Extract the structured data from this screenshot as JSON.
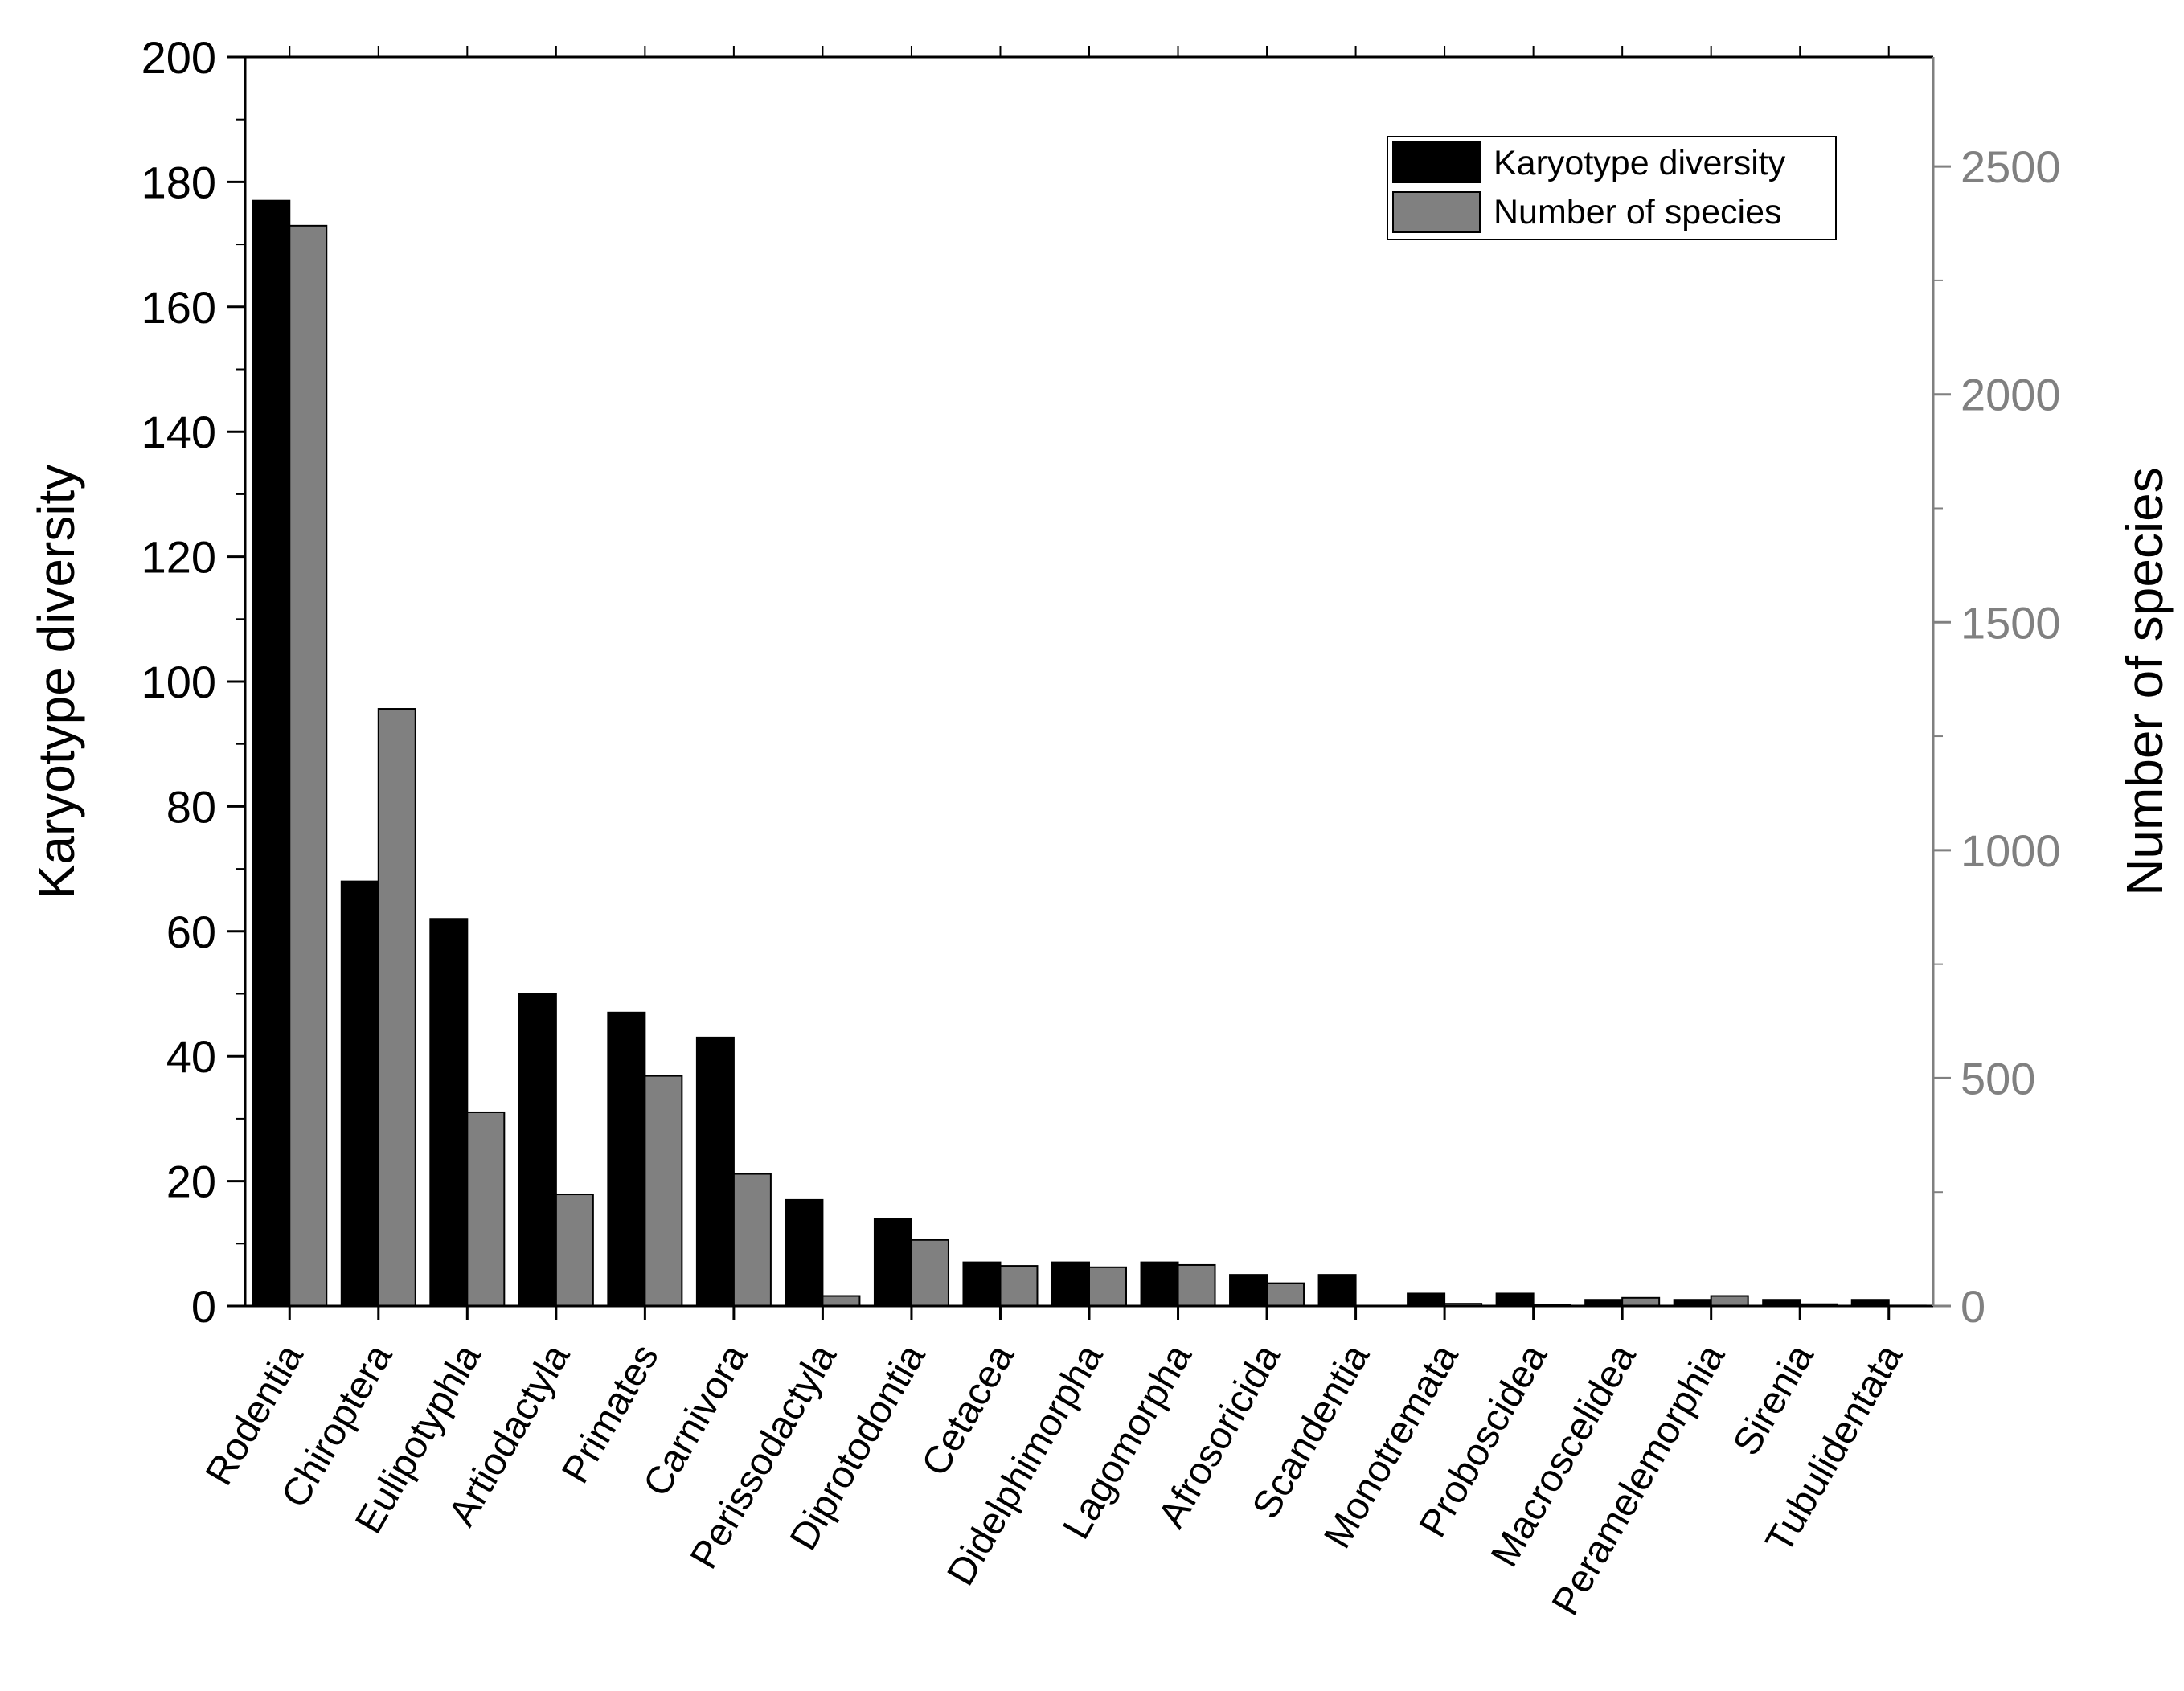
{
  "chart_data": {
    "type": "bar",
    "title": "",
    "categories": [
      "Rodentia",
      "Chiroptera",
      "Eulipotyphla",
      "Artiodactyla",
      "Primates",
      "Carnivora",
      "Perissodactyla",
      "Diprotodontia",
      "Cetacea",
      "Didelphimorpha",
      "Lagomorpha",
      "Afrosoricida",
      "Scandentia",
      "Monotremata",
      "Proboscidea",
      "Macroscelidea",
      "Peramelemorphia",
      "Sirenia",
      "Tubulidentata"
    ],
    "series": [
      {
        "name": "Karyotype diversity",
        "axis": "left",
        "color": "#000000",
        "values": [
          177,
          68,
          62,
          50,
          47,
          43,
          17,
          14,
          7,
          7,
          7,
          5,
          5,
          2,
          2,
          1,
          1,
          1,
          1
        ]
      },
      {
        "name": "Number of species",
        "axis": "right",
        "color": "#808080",
        "values": [
          2370,
          1310,
          425,
          245,
          505,
          290,
          22,
          145,
          88,
          85,
          90,
          50,
          0,
          5,
          3,
          18,
          22,
          4,
          1
        ]
      }
    ],
    "ylabel": "Karyotype diversity",
    "ylim": [
      0,
      200
    ],
    "yticks": [
      "0",
      "20",
      "40",
      "60",
      "80",
      "100",
      "120",
      "140",
      "160",
      "180",
      "200"
    ],
    "y2label": "Number of species",
    "y2lim": [
      0,
      2740
    ],
    "y2ticks": [
      "0",
      "500",
      "1000",
      "1500",
      "2000",
      "2500"
    ],
    "y2_color": "#808080",
    "legend_position": "top-right",
    "grid": false
  }
}
